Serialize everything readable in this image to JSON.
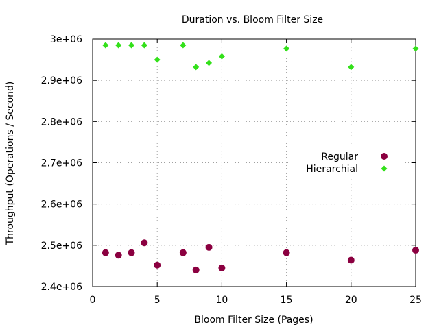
{
  "chart_data": {
    "type": "scatter",
    "title": "Duration vs. Bloom Filter Size",
    "xlabel": "Bloom Filter Size (Pages)",
    "ylabel": "Throughput (Operations / Second)",
    "xlim": [
      0,
      25
    ],
    "ylim": [
      2400000,
      3000000
    ],
    "x_ticks": [
      0,
      5,
      10,
      15,
      20,
      25
    ],
    "x_tick_labels": [
      "0",
      "5",
      "10",
      "15",
      "20",
      "25"
    ],
    "y_ticks": [
      2400000,
      2500000,
      2600000,
      2700000,
      2800000,
      2900000,
      3000000
    ],
    "y_tick_labels": [
      "2.4e+06",
      "2.5e+06",
      "2.6e+06",
      "2.7e+06",
      "2.8e+06",
      "2.9e+06",
      "3e+06"
    ],
    "grid": true,
    "legend_position": "right-middle",
    "series": [
      {
        "name": "Regular",
        "color": "#8b0040",
        "marker": "circle",
        "x": [
          1,
          2,
          3,
          4,
          5,
          7,
          8,
          9,
          10,
          15,
          20,
          25
        ],
        "y": [
          2482000,
          2476000,
          2482000,
          2506000,
          2452000,
          2482000,
          2440000,
          2495000,
          2445000,
          2482000,
          2464000,
          2488000
        ]
      },
      {
        "name": "Hierarchial",
        "color": "#33e01a",
        "marker": "diamond",
        "x": [
          1,
          2,
          3,
          4,
          5,
          7,
          8,
          9,
          10,
          15,
          20,
          25
        ],
        "y": [
          2985000,
          2985000,
          2985000,
          2985000,
          2950000,
          2985000,
          2932000,
          2942000,
          2958000,
          2977000,
          2932000,
          2977000
        ]
      }
    ]
  }
}
